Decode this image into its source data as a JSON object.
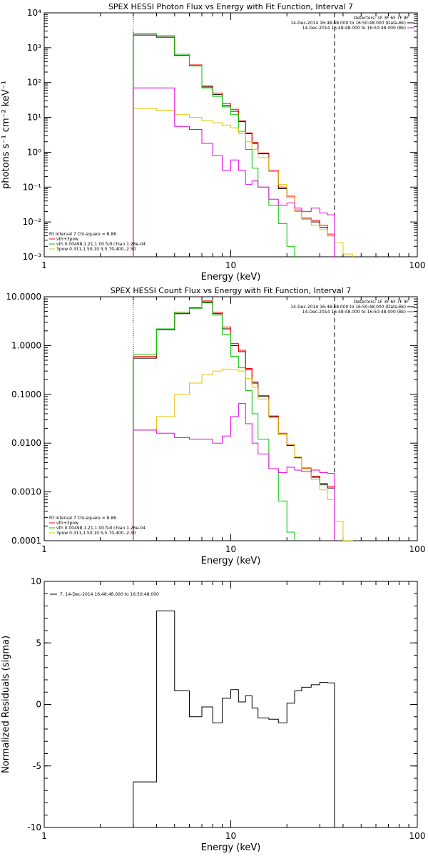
{
  "colors": {
    "total": "#000000",
    "vth_3pow": "#ff0000",
    "vth": "#00c800",
    "3pow": "#e6c000",
    "bk": "#e600e6"
  },
  "chart_data": [
    {
      "type": "line",
      "title": "SPEX HESSI Photon Flux vs Energy with Fit Function, Interval 7",
      "xlabel": "Energy (keV)",
      "ylabel": "photons s⁻¹ cm⁻² keV⁻¹",
      "xscale": "log",
      "yscale": "log",
      "xlim": [
        1,
        100
      ],
      "ylim": [
        0.001,
        10000
      ],
      "xticks": [
        1,
        10,
        100
      ],
      "xtick_labels": [
        "1",
        "10",
        "100"
      ],
      "yticks": [
        0.001,
        0.01,
        0.1,
        1,
        10,
        100,
        1000,
        10000
      ],
      "ytick_labels": [
        "10⁻³",
        "10⁻²",
        "10⁻¹",
        "10⁰",
        "10¹",
        "10²",
        "10³",
        "10⁴"
      ],
      "vlines": [
        {
          "x": 3,
          "style": "dotted"
        },
        {
          "x": 36,
          "style": "dashed"
        }
      ],
      "detector_text": "Detectors: 1F 3F 6F 7F 9F",
      "legend_lines": [
        {
          "text": "14-Dec-2014 16:48:48.000 to 16:50:48.000 (Data-Bk)",
          "color": "total"
        },
        {
          "text": "14-Dec-2014 16:48:48.000 to 16:50:48.000 (Bk)",
          "color": "bk"
        }
      ],
      "fit_text": {
        "header": "Fit Interval 7   Chi-square = 8.86",
        "lines": [
          {
            "text": "vth+3pow",
            "color": "vth_3pow"
          },
          {
            "text": "vth 0.00498,1.21,1.00  full chian 1.26e-04",
            "color": "vth"
          },
          {
            "text": "3pow 0.311,1.50,10.5,5.70,400.,2.50",
            "color": "3pow"
          }
        ]
      },
      "x_edges": [
        3,
        4,
        5,
        6,
        7,
        8,
        9,
        10,
        11,
        12,
        13,
        14,
        16,
        18,
        20,
        22,
        24,
        27,
        30,
        33,
        36,
        40,
        45
      ],
      "series": [
        {
          "color": "total",
          "values": [
            2300,
            2000,
            600,
            300,
            75,
            45,
            22,
            15,
            7.5,
            3.4,
            1.8,
            0.9,
            0.28,
            0.09,
            0.05,
            0.02,
            0.012,
            0.01,
            0.007,
            0.004,
            null,
            null
          ]
        },
        {
          "color": "vth_3pow",
          "values": [
            2500,
            2200,
            650,
            320,
            80,
            50,
            25,
            17,
            8,
            3.6,
            1.9,
            0.95,
            0.3,
            0.1,
            0.055,
            0.022,
            0.013,
            0.011,
            0.008,
            0.0045,
            null,
            null
          ]
        },
        {
          "color": "vth",
          "values": [
            2500,
            2200,
            650,
            300,
            70,
            40,
            20,
            12,
            4,
            1.2,
            0.35,
            0.1,
            0.03,
            0.009,
            0.002,
            null,
            null,
            null,
            null,
            null,
            null,
            null
          ]
        },
        {
          "color": "3pow",
          "values": [
            18,
            16,
            12,
            10,
            8,
            7,
            6,
            5,
            3.4,
            2.0,
            1.2,
            0.7,
            0.28,
            0.12,
            0.05,
            0.02,
            0.012,
            0.008,
            0.006,
            0.004,
            0.0025,
            0.0012
          ]
        },
        {
          "color": "bk",
          "values": [
            70,
            70,
            5.5,
            4.5,
            1.8,
            0.8,
            0.3,
            0.6,
            0.3,
            0.12,
            0.15,
            0.1,
            0.045,
            0.03,
            0.035,
            0.025,
            0.02,
            0.025,
            0.018,
            0.016,
            null,
            null
          ]
        }
      ]
    },
    {
      "type": "line",
      "title": "SPEX HESSI Count Flux vs Energy with Fit Function, Interval 7",
      "xlabel": "Energy (keV)",
      "ylabel": "",
      "xscale": "log",
      "yscale": "log",
      "xlim": [
        1,
        100
      ],
      "ylim": [
        0.0001,
        10
      ],
      "xticks": [
        1,
        10,
        100
      ],
      "xtick_labels": [
        "1",
        "10",
        "100"
      ],
      "yticks": [
        0.0001,
        0.001,
        0.01,
        0.1,
        1,
        10
      ],
      "ytick_labels": [
        "0.0001",
        "0.0010",
        "0.0100",
        "0.1000",
        "1.0000",
        "10.0000"
      ],
      "vlines": [
        {
          "x": 3,
          "style": "dotted"
        },
        {
          "x": 36,
          "style": "dashed"
        }
      ],
      "detector_text": "Detectors: 1F 3F 6F 7F 9F",
      "legend_lines": [
        {
          "text": "14-Dec-2014 16:48:48.000 to 16:50:48.000 (Data-Bk)",
          "color": "total"
        },
        {
          "text": "14-Dec-2014 16:48:48.000 to 16:50:48.000 (Bk)",
          "color": "bk"
        }
      ],
      "fit_text": {
        "header": "Fit Interval 7   Chi-square = 8.86",
        "lines": [
          {
            "text": "vth+3pow",
            "color": "vth_3pow"
          },
          {
            "text": "vth 0.00498,1.21,1.00  full chian 1.26e-04",
            "color": "vth"
          },
          {
            "text": "3pow 0.311,1.50,10.5,5.70,400.,2.50",
            "color": "3pow"
          }
        ]
      },
      "x_edges": [
        3,
        4,
        5,
        6,
        7,
        8,
        9,
        10,
        11,
        12,
        13,
        14,
        16,
        18,
        20,
        22,
        24,
        27,
        30,
        33,
        36,
        40,
        45
      ],
      "series": [
        {
          "color": "total",
          "values": [
            0.55,
            2.1,
            4.5,
            5.8,
            7.8,
            4.5,
            2.2,
            1.0,
            0.75,
            0.32,
            0.17,
            0.09,
            0.035,
            0.015,
            0.009,
            0.005,
            0.003,
            0.002,
            0.0014,
            0.0012,
            null,
            null
          ]
        },
        {
          "color": "vth_3pow",
          "values": [
            0.6,
            2.2,
            4.8,
            6.0,
            8.2,
            4.8,
            2.4,
            1.1,
            0.8,
            0.34,
            0.18,
            0.095,
            0.036,
            0.016,
            0.0095,
            0.0052,
            0.0031,
            0.0021,
            0.0015,
            0.0013,
            null,
            null
          ]
        },
        {
          "color": "vth",
          "values": [
            0.65,
            2.2,
            4.8,
            5.8,
            7.5,
            4.2,
            1.7,
            0.6,
            0.35,
            0.12,
            0.04,
            0.012,
            0.003,
            0.00065,
            0.00015,
            null,
            null,
            null,
            null,
            null,
            null,
            null
          ]
        },
        {
          "color": "3pow",
          "values": [
            0.0185,
            0.035,
            0.1,
            0.17,
            0.25,
            0.3,
            0.33,
            0.32,
            0.3,
            0.21,
            0.14,
            0.08,
            0.033,
            0.015,
            0.0095,
            0.0052,
            0.003,
            0.0018,
            0.0011,
            0.0007,
            0.00025,
            0.0001
          ]
        },
        {
          "color": "bk",
          "values": [
            0.0185,
            0.016,
            0.013,
            0.012,
            0.012,
            0.01,
            0.014,
            0.035,
            0.065,
            0.025,
            0.01,
            0.006,
            0.003,
            0.0025,
            0.0032,
            0.0028,
            0.0026,
            0.0028,
            0.0025,
            0.0024,
            null,
            null
          ]
        }
      ]
    },
    {
      "type": "line",
      "title": "",
      "xlabel": "Energy (keV)",
      "ylabel": "Normalized Residuals (sigma)",
      "xscale": "log",
      "yscale": "linear",
      "xlim": [
        1,
        100
      ],
      "ylim": [
        -10,
        10
      ],
      "xticks": [
        1,
        10,
        100
      ],
      "xtick_labels": [
        "1",
        "10",
        "100"
      ],
      "yticks": [
        -10,
        -5,
        0,
        5,
        10
      ],
      "ytick_labels": [
        "-10",
        "-5",
        "0",
        "5",
        "10"
      ],
      "legend_lines": [
        {
          "text": "7. 14-Dec-2014 16:48:48.000 to 16:50:48.000",
          "color": "total"
        }
      ],
      "x_edges": [
        3,
        4,
        5,
        6,
        7,
        8,
        9,
        10,
        11,
        12,
        13,
        14,
        16,
        18,
        20,
        22,
        24,
        27,
        30,
        33,
        36
      ],
      "series": [
        {
          "color": "total",
          "values": [
            -6.3,
            7.6,
            1.1,
            -1.0,
            -0.2,
            -1.5,
            0.5,
            1.2,
            0.2,
            0.7,
            -0.3,
            -1.1,
            -1.2,
            -1.5,
            0.1,
            1.1,
            1.4,
            1.6,
            1.8,
            1.75
          ]
        }
      ]
    }
  ]
}
